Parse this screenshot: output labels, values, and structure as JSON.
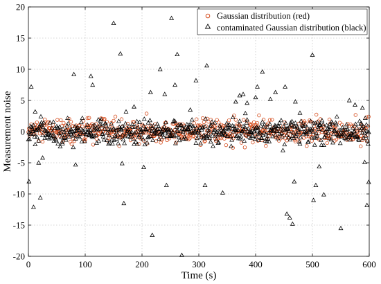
{
  "chart_data": {
    "type": "scatter",
    "xlabel": "Time (s)",
    "ylabel": "Measurement noise",
    "xlim": [
      0,
      600
    ],
    "ylim": [
      -20,
      20
    ],
    "x_ticks": [
      0,
      100,
      200,
      300,
      400,
      500,
      600
    ],
    "y_ticks": [
      -20,
      -15,
      -10,
      -5,
      0,
      5,
      10,
      15,
      20
    ],
    "grid": true,
    "legend": {
      "placement": "top-right"
    },
    "series": [
      {
        "name": "Gaussian distribution (red)",
        "marker": "circle",
        "color": "#d44a1a",
        "n_points": 600,
        "mean": 0,
        "std": 1.0,
        "x_range": [
          0,
          600
        ]
      },
      {
        "name": "contaminated Gaussian distribution (black)",
        "marker": "triangle",
        "color": "#000000",
        "n_points": 600,
        "base_std": 1.0,
        "outliers": [
          [
            1,
            -8.0
          ],
          [
            5,
            7.2
          ],
          [
            9,
            -12.1
          ],
          [
            12,
            3.2
          ],
          [
            18,
            -5.0
          ],
          [
            21,
            -10.6
          ],
          [
            25,
            -4.2
          ],
          [
            80,
            9.2
          ],
          [
            83,
            -5.3
          ],
          [
            110,
            8.9
          ],
          [
            113,
            7.5
          ],
          [
            150,
            17.4
          ],
          [
            162,
            12.5
          ],
          [
            165,
            -5.1
          ],
          [
            168,
            -11.5
          ],
          [
            186,
            4.0
          ],
          [
            203,
            -5.7
          ],
          [
            215,
            6.3
          ],
          [
            218,
            -16.6
          ],
          [
            232,
            10.0
          ],
          [
            240,
            6.0
          ],
          [
            243,
            -8.6
          ],
          [
            252,
            18.2
          ],
          [
            258,
            7.5
          ],
          [
            262,
            12.4
          ],
          [
            270,
            -19.8
          ],
          [
            285,
            3.5
          ],
          [
            295,
            8.2
          ],
          [
            311,
            -8.6
          ],
          [
            314,
            10.6
          ],
          [
            342,
            -9.8
          ],
          [
            365,
            4.8
          ],
          [
            372,
            5.8
          ],
          [
            378,
            6.0
          ],
          [
            385,
            4.6
          ],
          [
            400,
            5.5
          ],
          [
            403,
            7.2
          ],
          [
            412,
            9.6
          ],
          [
            426,
            5.2
          ],
          [
            435,
            6.3
          ],
          [
            452,
            7.2
          ],
          [
            455,
            -13.2
          ],
          [
            460,
            -13.8
          ],
          [
            465,
            -14.8
          ],
          [
            468,
            -8.0
          ],
          [
            470,
            4.8
          ],
          [
            478,
            3.0
          ],
          [
            500,
            12.3
          ],
          [
            502,
            -11.0
          ],
          [
            506,
            -8.6
          ],
          [
            512,
            -5.6
          ],
          [
            520,
            -10.1
          ],
          [
            550,
            -15.5
          ],
          [
            565,
            5.0
          ],
          [
            575,
            4.3
          ],
          [
            588,
            3.8
          ],
          [
            592,
            -4.9
          ],
          [
            596,
            -11.8
          ],
          [
            599,
            -8.1
          ]
        ]
      }
    ]
  }
}
